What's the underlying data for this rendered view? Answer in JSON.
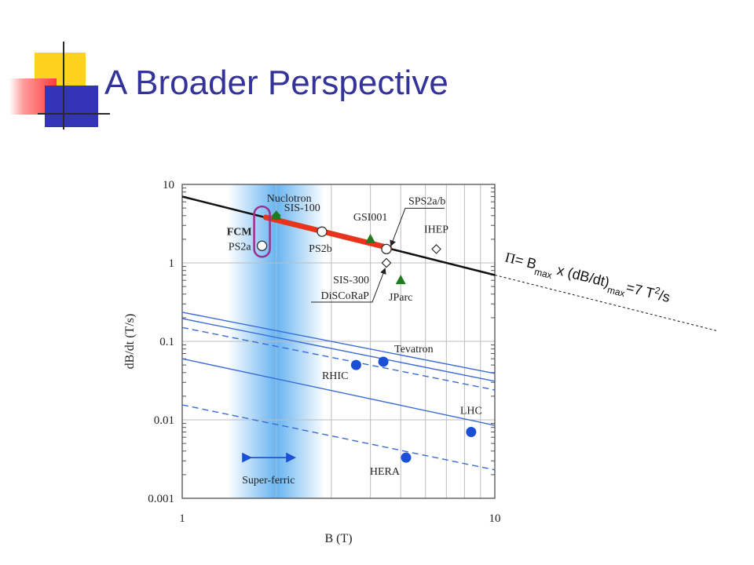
{
  "slide": {
    "title": "A Broader Perspective"
  },
  "colors": {
    "title": "#333399",
    "logo_yellow": "#ffd21f",
    "logo_red": "#ff3b3b",
    "logo_blue": "#3434b8",
    "fcm_loop": "#9c2f8f",
    "fcm_segment": "#e8341c",
    "green_marker": "#1e7b1e",
    "blue_marker": "#1a4fd6",
    "blue_line": "#3a6bd8",
    "superferric_band": "#60b0f0",
    "grid": "#bdbdbd"
  },
  "chart_data": {
    "type": "scatter",
    "xscale": "log",
    "yscale": "log",
    "xlim": [
      1,
      10
    ],
    "ylim": [
      0.001,
      10
    ],
    "xlabel": "B (T)",
    "ylabel": "dB/dt (T/s)",
    "x_ticks": [
      "1",
      "10"
    ],
    "y_ticks": [
      "0.001",
      "0.01",
      "0.1",
      "1",
      "10"
    ],
    "grid": true,
    "formula": {
      "parts": [
        {
          "t": "Π",
          "s": "n"
        },
        {
          "t": "= B",
          "s": "n"
        },
        {
          "t": "max",
          "s": "sub"
        },
        {
          "t": " x (dB/dt)",
          "s": "n"
        },
        {
          "t": "max",
          "s": "sub"
        },
        {
          "t": "=7 T",
          "s": "n"
        },
        {
          "t": "2",
          "s": "sup"
        },
        {
          "t": "/s",
          "s": "n"
        }
      ],
      "constant": 7
    },
    "superferric": {
      "label": "Super-ferric",
      "x_center": 2.0
    },
    "fcm": {
      "label": "FCM",
      "segment": [
        {
          "x": 1.85,
          "y": 3.8
        },
        {
          "x": 4.6,
          "y": 1.55
        }
      ]
    },
    "blue_lines": [
      {
        "style": "solid",
        "points": [
          [
            1,
            0.235
          ],
          [
            10,
            0.039
          ]
        ]
      },
      {
        "style": "solid",
        "points": [
          [
            1,
            0.195
          ],
          [
            10,
            0.031
          ]
        ]
      },
      {
        "style": "dashed",
        "points": [
          [
            1,
            0.15
          ],
          [
            10,
            0.024
          ]
        ]
      },
      {
        "style": "solid",
        "points": [
          [
            1,
            0.06
          ],
          [
            10,
            0.0085
          ]
        ]
      },
      {
        "style": "dashed",
        "points": [
          [
            1,
            0.0155
          ],
          [
            10,
            0.0023
          ]
        ]
      }
    ],
    "points": [
      {
        "label": "Nuclotron",
        "x": 2.0,
        "y": 4.0,
        "marker": "diamond-green"
      },
      {
        "label": "SIS-100",
        "x": 2.0,
        "y": 4.0,
        "marker": "triangle-green"
      },
      {
        "label": "PS2a",
        "x": 1.8,
        "y": 1.65,
        "marker": "circle-open"
      },
      {
        "label": "PS2b",
        "x": 2.8,
        "y": 2.5,
        "marker": "circle-open"
      },
      {
        "label": "GSI001",
        "x": 4.0,
        "y": 2.0,
        "marker": "triangle-green"
      },
      {
        "label": "SPS2a/b",
        "x": 4.5,
        "y": 1.5,
        "marker": "circle-open"
      },
      {
        "label": "IHEP",
        "x": 6.5,
        "y": 1.5,
        "marker": "diamond-open"
      },
      {
        "label": "SIS-300",
        "x": 4.5,
        "y": 1.0,
        "marker": "diamond-open"
      },
      {
        "label": "DiSCoRaP",
        "x": 4.5,
        "y": 1.0,
        "marker": "diamond-open"
      },
      {
        "label": "JParc",
        "x": 5.0,
        "y": 0.6,
        "marker": "triangle-green"
      },
      {
        "label": "Tevatron",
        "x": 4.4,
        "y": 0.055,
        "marker": "circle-blue"
      },
      {
        "label": "RHIC",
        "x": 3.6,
        "y": 0.05,
        "marker": "circle-blue"
      },
      {
        "label": "LHC",
        "x": 8.4,
        "y": 0.007,
        "marker": "circle-blue"
      },
      {
        "label": "HERA",
        "x": 5.2,
        "y": 0.0033,
        "marker": "circle-blue"
      }
    ]
  }
}
